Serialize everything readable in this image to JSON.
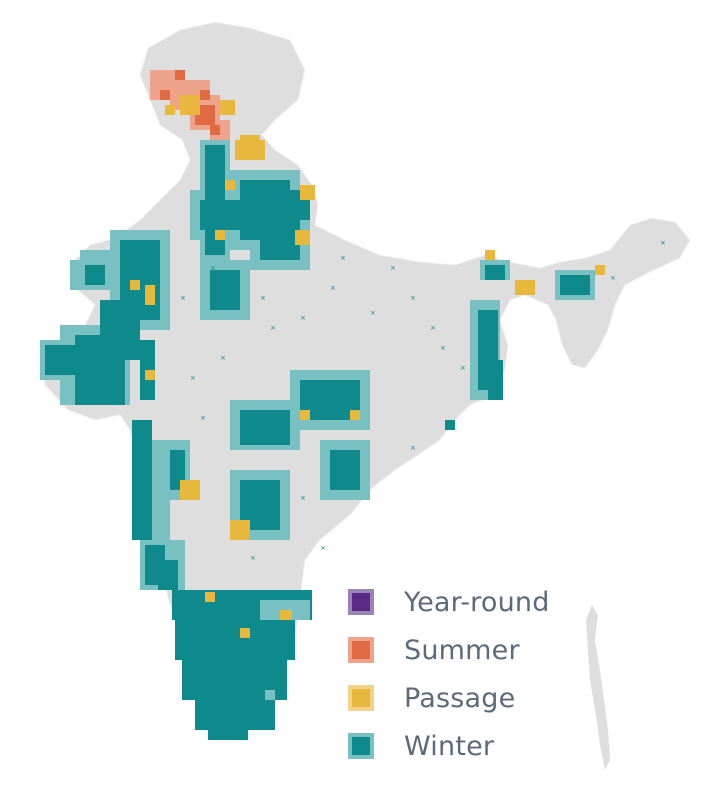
{
  "map": {
    "base_fill": "#e0e0e0",
    "border_color": "#f4f4f4",
    "highlight_colors": {
      "winter": "#0f8a8c",
      "winter_light": "#79c0c2",
      "passage": "#e8b83c",
      "passage_light": "#f1d48a",
      "summer": "#e06a44",
      "summer_light": "#eda48a",
      "year_round": "#5b2a86"
    }
  },
  "legend": {
    "items": [
      {
        "key": "year_round",
        "label": "Year-round",
        "color": "#5b2a86",
        "border": "#9c83b6"
      },
      {
        "key": "summer",
        "label": "Summer",
        "color": "#e06a44",
        "border": "#eda48a"
      },
      {
        "key": "passage",
        "label": "Passage",
        "color": "#e8b83c",
        "border": "#f1d48a"
      },
      {
        "key": "winter",
        "label": "Winter",
        "color": "#0f8a8c",
        "border": "#79c0c2"
      }
    ]
  }
}
